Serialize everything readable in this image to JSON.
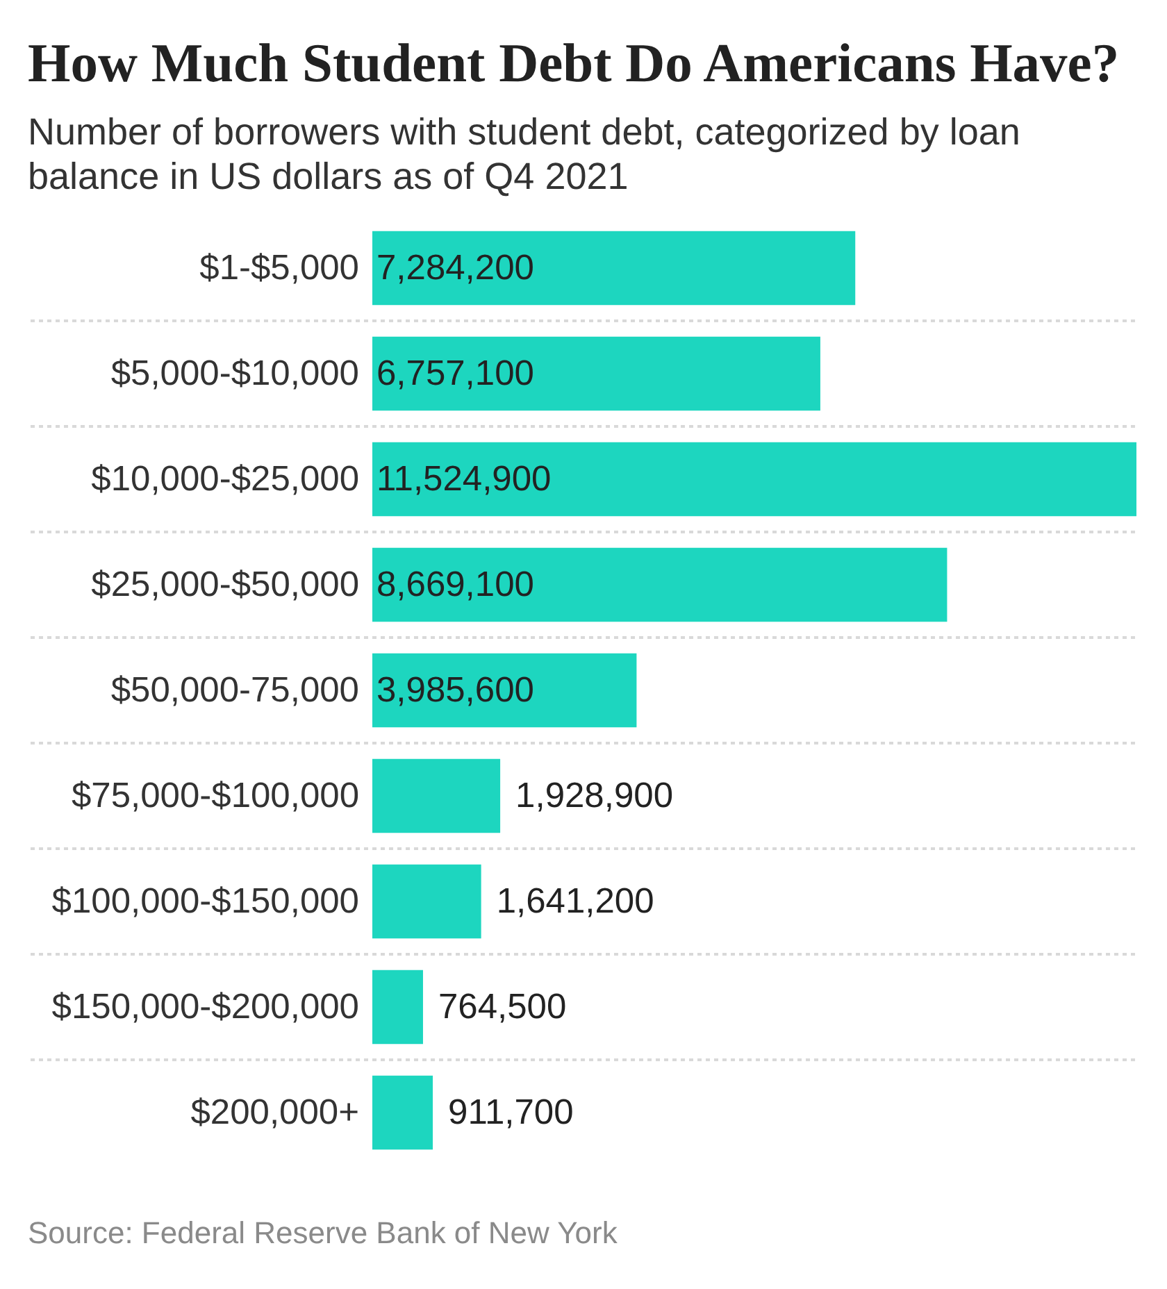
{
  "chart_data": {
    "type": "bar",
    "orientation": "horizontal",
    "title": "How Much Student Debt Do Americans Have?",
    "subtitle": "Number of borrowers with student debt, categorized by loan balance in US dollars as of Q4 2021",
    "categories": [
      "$1-$5,000",
      "$5,000-$10,000",
      "$10,000-$25,000",
      "$25,000-$50,000",
      "$50,000-75,000",
      "$75,000-$100,000",
      "$100,000-$150,000",
      "$150,000-$200,000",
      "$200,000+"
    ],
    "values": [
      7284200,
      6757100,
      11524900,
      8669100,
      3985600,
      1928900,
      1641200,
      764500,
      911700
    ],
    "value_labels": [
      "7,284,200",
      "6,757,100",
      "11,524,900",
      "8,669,100",
      "3,985,600",
      "1,928,900",
      "1,641,200",
      "764,500",
      "911,700"
    ],
    "color": "#1dd6bf",
    "grid": "y",
    "annotations": [
      "Source: Federal Reserve Bank of New York"
    ]
  }
}
